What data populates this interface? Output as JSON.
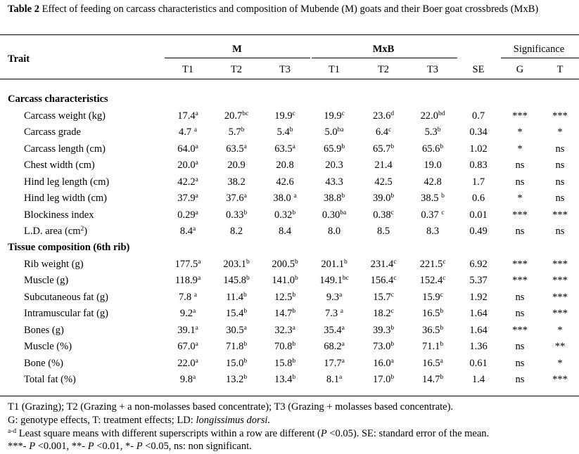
{
  "caption": {
    "label": "Table 2",
    "text": " Effect of feeding on carcass characteristics and composition of Mubende (M) goats and their Boer goat crossbreds (MxB)"
  },
  "header": {
    "trait": "Trait",
    "group_m": "M",
    "group_mxb": "MxB",
    "significance": "Significance",
    "columns": [
      "T1",
      "T2",
      "T3",
      "T1",
      "T2",
      "T3",
      "SE",
      "G",
      "T"
    ]
  },
  "sections": [
    {
      "title": "Carcass characteristics",
      "rows": [
        {
          "trait": "Carcass weight (kg)",
          "cells": [
            [
              "17.4",
              "a"
            ],
            [
              "20.7",
              "bc"
            ],
            [
              "19.9",
              "c"
            ],
            [
              "19.9",
              "c"
            ],
            [
              "23.6",
              "d"
            ],
            [
              "22.0",
              "bd"
            ],
            [
              "0.7",
              ""
            ],
            [
              "***",
              ""
            ],
            [
              "***",
              ""
            ]
          ]
        },
        {
          "trait": "Carcass grade",
          "cells": [
            [
              "4.7 ",
              "a"
            ],
            [
              "5.7",
              "b"
            ],
            [
              "5.4",
              "b"
            ],
            [
              "5.0",
              "ba"
            ],
            [
              "6.4",
              "c"
            ],
            [
              "5.3",
              "b"
            ],
            [
              "0.34",
              ""
            ],
            [
              "*",
              ""
            ],
            [
              "*",
              ""
            ]
          ]
        },
        {
          "trait": "Carcass length (cm)",
          "cells": [
            [
              "64.0",
              "a"
            ],
            [
              "63.5",
              "a"
            ],
            [
              "63.5",
              "a"
            ],
            [
              "65.9",
              "b"
            ],
            [
              "65.7",
              "b"
            ],
            [
              "65.6",
              "b"
            ],
            [
              "1.02",
              ""
            ],
            [
              "*",
              ""
            ],
            [
              "ns",
              ""
            ]
          ]
        },
        {
          "trait": "Chest width (cm)",
          "cells": [
            [
              "20.0",
              "a"
            ],
            [
              "20.9",
              ""
            ],
            [
              "20.8",
              ""
            ],
            [
              "20.3",
              ""
            ],
            [
              "21.4",
              ""
            ],
            [
              "19.0",
              ""
            ],
            [
              "0.83",
              ""
            ],
            [
              "ns",
              ""
            ],
            [
              "ns",
              ""
            ]
          ]
        },
        {
          "trait": "Hind leg length (cm)",
          "cells": [
            [
              "42.2",
              "a"
            ],
            [
              "38.2",
              ""
            ],
            [
              "42.6",
              ""
            ],
            [
              "43.3",
              ""
            ],
            [
              "42.5",
              ""
            ],
            [
              "42.8",
              ""
            ],
            [
              "1.7",
              ""
            ],
            [
              "ns",
              ""
            ],
            [
              "ns",
              ""
            ]
          ]
        },
        {
          "trait": "Hind leg width (cm)",
          "cells": [
            [
              "37.9",
              "a"
            ],
            [
              "37.6",
              "a"
            ],
            [
              "38.0 ",
              "a"
            ],
            [
              "38.8",
              "b"
            ],
            [
              "39.0",
              "b"
            ],
            [
              "38.5 ",
              "b"
            ],
            [
              "0.6",
              ""
            ],
            [
              "*",
              ""
            ],
            [
              "ns",
              ""
            ]
          ]
        },
        {
          "trait": "Blockiness index",
          "cells": [
            [
              "0.29",
              "a"
            ],
            [
              "0.33",
              "b"
            ],
            [
              "0.32",
              "b"
            ],
            [
              "0.30",
              "ba"
            ],
            [
              "0.38",
              "c"
            ],
            [
              "0.37 ",
              "c"
            ],
            [
              "0.01",
              ""
            ],
            [
              "***",
              ""
            ],
            [
              "***",
              ""
            ]
          ]
        },
        {
          "trait": "L.D. area (cm",
          "trait_sup": "2",
          "trait_end": ")",
          "cells": [
            [
              "8.4",
              "a"
            ],
            [
              "8.2",
              ""
            ],
            [
              "8.4",
              ""
            ],
            [
              "8.0",
              ""
            ],
            [
              "8.5",
              ""
            ],
            [
              "8.3",
              ""
            ],
            [
              "0.49",
              ""
            ],
            [
              "ns",
              ""
            ],
            [
              "ns",
              ""
            ]
          ]
        }
      ]
    },
    {
      "title": "Tissue composition (6th rib)",
      "rows": [
        {
          "trait": "Rib weight (g)",
          "cells": [
            [
              "177.5",
              "a"
            ],
            [
              "203.1",
              "b"
            ],
            [
              "200.5",
              "b"
            ],
            [
              "201.1",
              "b"
            ],
            [
              "231.4",
              "c"
            ],
            [
              "221.5",
              "c"
            ],
            [
              "6.92",
              ""
            ],
            [
              "***",
              ""
            ],
            [
              "***",
              ""
            ]
          ]
        },
        {
          "trait": "Muscle (g)",
          "cells": [
            [
              "118.9",
              "a"
            ],
            [
              "145.8",
              "b"
            ],
            [
              "141.0",
              "b"
            ],
            [
              "149.1",
              "bc"
            ],
            [
              "156.4",
              "c"
            ],
            [
              "152.4",
              "c"
            ],
            [
              "5.37",
              ""
            ],
            [
              "***",
              ""
            ],
            [
              "***",
              ""
            ]
          ]
        },
        {
          "trait": "Subcutaneous fat (g)",
          "cells": [
            [
              "7.8 ",
              "a"
            ],
            [
              "11.4",
              "b"
            ],
            [
              "12.5",
              "b"
            ],
            [
              "9.3",
              "a"
            ],
            [
              "15.7",
              "c"
            ],
            [
              "15.9",
              "c"
            ],
            [
              "1.92",
              ""
            ],
            [
              "ns",
              ""
            ],
            [
              "***",
              ""
            ]
          ]
        },
        {
          "trait": "Intramuscular fat (g)",
          "cells": [
            [
              "9.2",
              "a"
            ],
            [
              "15.4",
              "b"
            ],
            [
              "14.7",
              "b"
            ],
            [
              "7.3 ",
              "a"
            ],
            [
              "18.2",
              "c"
            ],
            [
              "16.5",
              "b"
            ],
            [
              "1.64",
              ""
            ],
            [
              "ns",
              ""
            ],
            [
              "***",
              ""
            ]
          ]
        },
        {
          "trait": "Bones (g)",
          "cells": [
            [
              "39.1",
              "a"
            ],
            [
              "30.5",
              "a"
            ],
            [
              "32.3",
              "a"
            ],
            [
              "35.4",
              "a"
            ],
            [
              "39.3",
              "b"
            ],
            [
              "36.5",
              "b"
            ],
            [
              "1.64",
              ""
            ],
            [
              "***",
              ""
            ],
            [
              "*",
              ""
            ]
          ]
        },
        {
          "trait": "Muscle (%)",
          "cells": [
            [
              "67.0",
              "a"
            ],
            [
              "71.8",
              "b"
            ],
            [
              "70.8",
              "b"
            ],
            [
              "68.2",
              "a"
            ],
            [
              "73.0",
              "b"
            ],
            [
              "71.1",
              "b"
            ],
            [
              "1.36",
              ""
            ],
            [
              "ns",
              ""
            ],
            [
              "**",
              ""
            ]
          ]
        },
        {
          "trait": "Bone (%)",
          "cells": [
            [
              "22.0",
              "a"
            ],
            [
              "15.0",
              "b"
            ],
            [
              "15.8",
              "b"
            ],
            [
              "17.7",
              "a"
            ],
            [
              "16.0",
              "a"
            ],
            [
              "16.5",
              "a"
            ],
            [
              "0.61",
              ""
            ],
            [
              "ns",
              ""
            ],
            [
              "*",
              ""
            ]
          ]
        },
        {
          "trait": "Total fat (%)",
          "cells": [
            [
              "9.8",
              "a"
            ],
            [
              "13.2",
              "b"
            ],
            [
              "13.4",
              "b"
            ],
            [
              "8.1",
              "a"
            ],
            [
              "17.0",
              "b"
            ],
            [
              "14.7",
              "b"
            ],
            [
              "1.4",
              ""
            ],
            [
              "ns",
              ""
            ],
            [
              "***",
              ""
            ]
          ]
        }
      ]
    }
  ],
  "footnotes": {
    "line1": "T1 (Grazing); T2 (Grazing + a non-molasses based concentrate); T3 (Grazing + molasses based concentrate).",
    "line2_pre": "G: genotype effects, T: treatment effects; LD: ",
    "line2_italic": "longissimus dorsi.",
    "line3_sup": "a-d",
    "line3_pre": " Least square means with different superscripts within a row are different (",
    "line3_p": "P",
    "line3_post": " <0.05). SE: standard error of the mean.",
    "line4_a": "***- ",
    "line4_b": " <0.001, **- ",
    "line4_c": " <0.01, *- ",
    "line4_d": " <0.05, ns: non significant.",
    "p": "P"
  }
}
